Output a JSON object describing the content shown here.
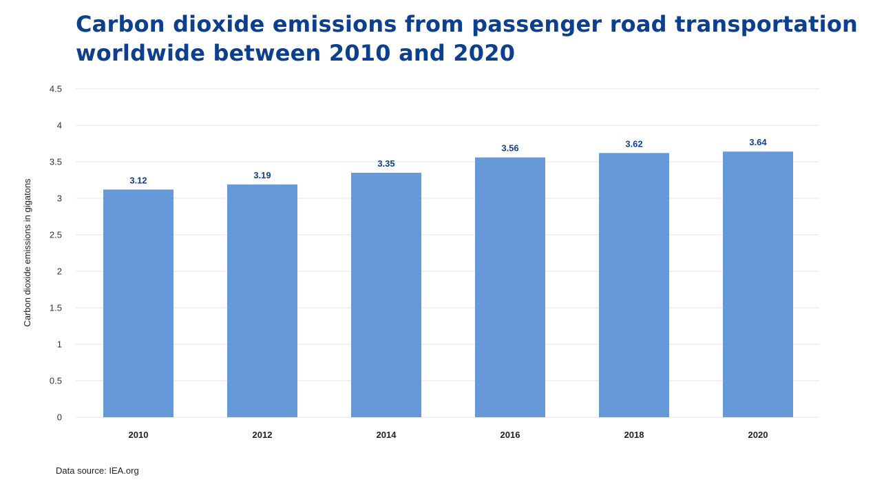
{
  "chart_data": {
    "type": "bar",
    "title": "Carbon dioxide emissions from passenger road transportation worldwide between 2010 and 2020",
    "xlabel": "",
    "ylabel": "Carbon dioxide emissions in gigatons",
    "categories": [
      "2010",
      "2012",
      "2014",
      "2016",
      "2018",
      "2020"
    ],
    "values": [
      3.12,
      3.19,
      3.35,
      3.56,
      3.62,
      3.64
    ],
    "value_labels": [
      "3.12",
      "3.19",
      "3.35",
      "3.56",
      "3.62",
      "3.64"
    ],
    "ylim": [
      0,
      4.5
    ],
    "yticks": [
      "0",
      "0.5",
      "1",
      "1.5",
      "2",
      "2.5",
      "3",
      "3.5",
      "4",
      "4.5"
    ],
    "grid": true,
    "source": "Data source: IEA.org"
  },
  "colors": {
    "bar": "#6699d8",
    "title": "#0d3f8f",
    "value_label": "#0d3f8f",
    "gridline": "#e6e6e6",
    "tick_text": "#333333"
  }
}
